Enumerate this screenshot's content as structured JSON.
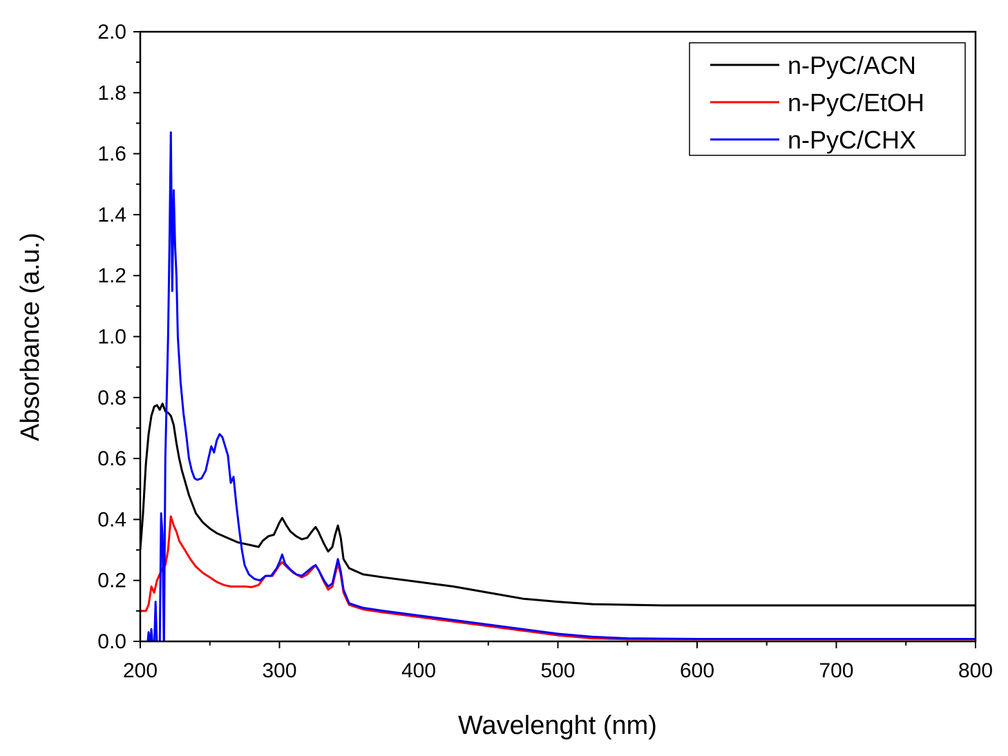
{
  "chart_data": {
    "type": "line",
    "title": "",
    "xlabel": "Wavelenght (nm)",
    "ylabel": "Absorbance (a.u.)",
    "xlim": [
      200,
      800
    ],
    "ylim": [
      0.0,
      2.0
    ],
    "x_ticks": [
      200,
      300,
      400,
      500,
      600,
      700,
      800
    ],
    "x_tick_labels": [
      "200",
      "300",
      "400",
      "500",
      "600",
      "700",
      "800"
    ],
    "y_ticks": [
      0.0,
      0.2,
      0.4,
      0.6,
      0.8,
      1.0,
      1.2,
      1.4,
      1.6,
      1.8,
      2.0
    ],
    "y_tick_labels": [
      "0.0",
      "0.2",
      "0.4",
      "0.6",
      "0.8",
      "1.0",
      "1.2",
      "1.4",
      "1.6",
      "1.8",
      "2.0"
    ],
    "grid": false,
    "legend_position": "top-right",
    "series": [
      {
        "name": "n-PyC/ACN",
        "color": "#000000",
        "points": [
          [
            200,
            0.3
          ],
          [
            202,
            0.42
          ],
          [
            204,
            0.58
          ],
          [
            206,
            0.68
          ],
          [
            208,
            0.74
          ],
          [
            210,
            0.77
          ],
          [
            212,
            0.775
          ],
          [
            214,
            0.76
          ],
          [
            216,
            0.78
          ],
          [
            218,
            0.755
          ],
          [
            220,
            0.75
          ],
          [
            222,
            0.74
          ],
          [
            224,
            0.71
          ],
          [
            226,
            0.65
          ],
          [
            228,
            0.6
          ],
          [
            230,
            0.56
          ],
          [
            235,
            0.48
          ],
          [
            240,
            0.42
          ],
          [
            245,
            0.39
          ],
          [
            250,
            0.37
          ],
          [
            255,
            0.355
          ],
          [
            260,
            0.345
          ],
          [
            265,
            0.335
          ],
          [
            270,
            0.325
          ],
          [
            275,
            0.32
          ],
          [
            280,
            0.315
          ],
          [
            285,
            0.31
          ],
          [
            288,
            0.33
          ],
          [
            292,
            0.345
          ],
          [
            296,
            0.35
          ],
          [
            300,
            0.39
          ],
          [
            302,
            0.405
          ],
          [
            305,
            0.38
          ],
          [
            308,
            0.36
          ],
          [
            312,
            0.345
          ],
          [
            316,
            0.335
          ],
          [
            320,
            0.34
          ],
          [
            324,
            0.365
          ],
          [
            326,
            0.375
          ],
          [
            328,
            0.36
          ],
          [
            332,
            0.32
          ],
          [
            335,
            0.295
          ],
          [
            338,
            0.31
          ],
          [
            340,
            0.35
          ],
          [
            342,
            0.38
          ],
          [
            344,
            0.34
          ],
          [
            346,
            0.27
          ],
          [
            350,
            0.24
          ],
          [
            360,
            0.22
          ],
          [
            375,
            0.21
          ],
          [
            400,
            0.195
          ],
          [
            425,
            0.18
          ],
          [
            450,
            0.16
          ],
          [
            475,
            0.14
          ],
          [
            500,
            0.13
          ],
          [
            525,
            0.122
          ],
          [
            550,
            0.12
          ],
          [
            575,
            0.118
          ],
          [
            600,
            0.118
          ],
          [
            700,
            0.118
          ],
          [
            800,
            0.118
          ]
        ]
      },
      {
        "name": "n-PyC/EtOH",
        "color": "#ff0000",
        "points": [
          [
            200,
            0.1
          ],
          [
            204,
            0.1
          ],
          [
            206,
            0.12
          ],
          [
            208,
            0.18
          ],
          [
            210,
            0.16
          ],
          [
            212,
            0.2
          ],
          [
            214,
            0.22
          ],
          [
            216,
            0.24
          ],
          [
            218,
            0.25
          ],
          [
            220,
            0.3
          ],
          [
            222,
            0.41
          ],
          [
            224,
            0.38
          ],
          [
            226,
            0.36
          ],
          [
            228,
            0.33
          ],
          [
            232,
            0.3
          ],
          [
            236,
            0.27
          ],
          [
            240,
            0.245
          ],
          [
            245,
            0.225
          ],
          [
            250,
            0.21
          ],
          [
            255,
            0.195
          ],
          [
            260,
            0.185
          ],
          [
            265,
            0.18
          ],
          [
            270,
            0.18
          ],
          [
            275,
            0.18
          ],
          [
            280,
            0.178
          ],
          [
            285,
            0.185
          ],
          [
            290,
            0.215
          ],
          [
            295,
            0.215
          ],
          [
            300,
            0.25
          ],
          [
            302,
            0.26
          ],
          [
            305,
            0.245
          ],
          [
            310,
            0.225
          ],
          [
            316,
            0.21
          ],
          [
            320,
            0.22
          ],
          [
            324,
            0.24
          ],
          [
            326,
            0.25
          ],
          [
            328,
            0.235
          ],
          [
            332,
            0.195
          ],
          [
            335,
            0.17
          ],
          [
            338,
            0.18
          ],
          [
            340,
            0.22
          ],
          [
            342,
            0.255
          ],
          [
            344,
            0.22
          ],
          [
            346,
            0.16
          ],
          [
            350,
            0.12
          ],
          [
            360,
            0.105
          ],
          [
            375,
            0.095
          ],
          [
            400,
            0.08
          ],
          [
            425,
            0.065
          ],
          [
            450,
            0.05
          ],
          [
            475,
            0.035
          ],
          [
            500,
            0.02
          ],
          [
            525,
            0.01
          ],
          [
            550,
            0.007
          ],
          [
            600,
            0.007
          ],
          [
            700,
            0.007
          ],
          [
            800,
            0.007
          ]
        ]
      },
      {
        "name": "n-PyC/CHX",
        "color": "#0000ff",
        "points": [
          [
            205,
            -0.02
          ],
          [
            206,
            0.03
          ],
          [
            207,
            -0.02
          ],
          [
            208,
            0.04
          ],
          [
            209,
            -0.02
          ],
          [
            210,
            -0.02
          ],
          [
            211,
            0.13
          ],
          [
            212,
            -0.02
          ],
          [
            214,
            -0.02
          ],
          [
            215,
            0.42
          ],
          [
            216,
            0.35
          ],
          [
            217,
            -0.02
          ],
          [
            218,
            0.6
          ],
          [
            220,
            1.0
          ],
          [
            221,
            1.3
          ],
          [
            222,
            1.67
          ],
          [
            223,
            1.15
          ],
          [
            224,
            1.48
          ],
          [
            225,
            1.3
          ],
          [
            226,
            1.2
          ],
          [
            227,
            1.0
          ],
          [
            229,
            0.85
          ],
          [
            231,
            0.75
          ],
          [
            233,
            0.68
          ],
          [
            235,
            0.6
          ],
          [
            237,
            0.56
          ],
          [
            239,
            0.535
          ],
          [
            241,
            0.53
          ],
          [
            244,
            0.535
          ],
          [
            247,
            0.56
          ],
          [
            249,
            0.6
          ],
          [
            251,
            0.64
          ],
          [
            253,
            0.62
          ],
          [
            255,
            0.66
          ],
          [
            257,
            0.68
          ],
          [
            259,
            0.67
          ],
          [
            261,
            0.64
          ],
          [
            263,
            0.61
          ],
          [
            265,
            0.52
          ],
          [
            267,
            0.54
          ],
          [
            269,
            0.45
          ],
          [
            271,
            0.37
          ],
          [
            273,
            0.3
          ],
          [
            275,
            0.25
          ],
          [
            278,
            0.22
          ],
          [
            282,
            0.205
          ],
          [
            286,
            0.2
          ],
          [
            290,
            0.215
          ],
          [
            294,
            0.215
          ],
          [
            298,
            0.24
          ],
          [
            300,
            0.26
          ],
          [
            302,
            0.285
          ],
          [
            304,
            0.255
          ],
          [
            308,
            0.235
          ],
          [
            312,
            0.22
          ],
          [
            316,
            0.215
          ],
          [
            320,
            0.23
          ],
          [
            324,
            0.245
          ],
          [
            326,
            0.25
          ],
          [
            328,
            0.235
          ],
          [
            332,
            0.2
          ],
          [
            335,
            0.18
          ],
          [
            338,
            0.19
          ],
          [
            340,
            0.23
          ],
          [
            342,
            0.27
          ],
          [
            344,
            0.23
          ],
          [
            346,
            0.17
          ],
          [
            350,
            0.125
          ],
          [
            360,
            0.11
          ],
          [
            375,
            0.1
          ],
          [
            400,
            0.085
          ],
          [
            425,
            0.07
          ],
          [
            450,
            0.055
          ],
          [
            475,
            0.04
          ],
          [
            500,
            0.025
          ],
          [
            525,
            0.015
          ],
          [
            550,
            0.01
          ],
          [
            600,
            0.008
          ],
          [
            700,
            0.008
          ],
          [
            800,
            0.008
          ]
        ]
      }
    ]
  }
}
